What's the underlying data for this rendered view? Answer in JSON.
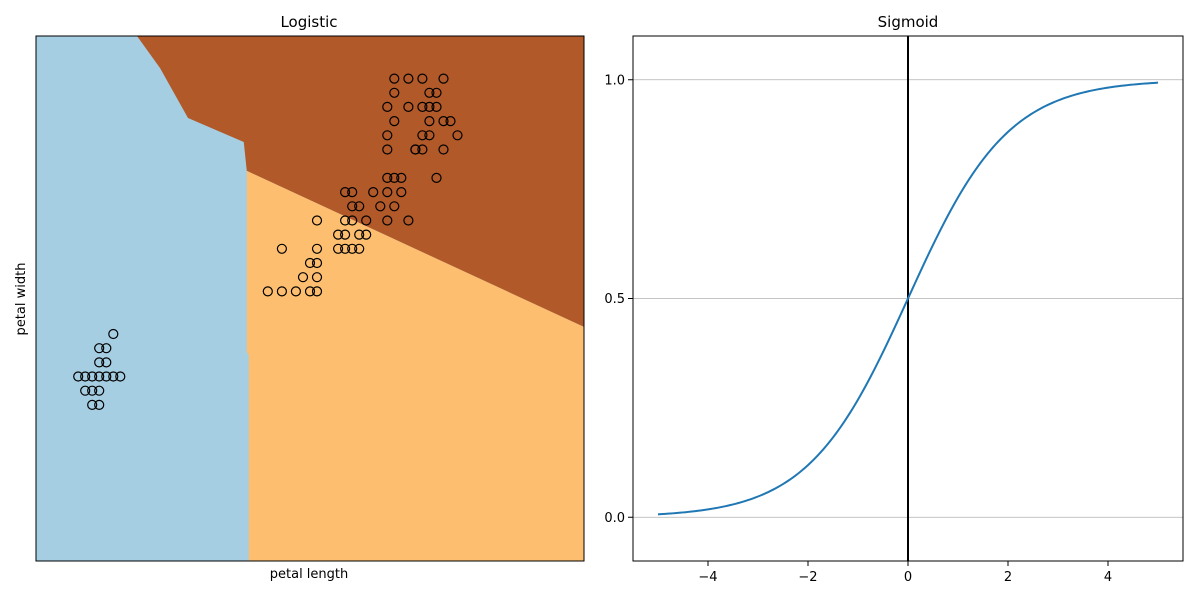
{
  "chart_data": [
    {
      "type": "scatter",
      "title": "Logistic",
      "xlabel": "petal length",
      "ylabel": "petal width",
      "xticks": "none",
      "yticks": "none",
      "grid": false,
      "region_colors": [
        "#a6cee3",
        "#fdbf6f",
        "#b15928"
      ],
      "boundary": {
        "blue_orange_edge_top": 3.0,
        "blue_orange_edge_mid": 3.0,
        "upper_line": [
          [
            3.0,
            1.85
          ],
          [
            7.8,
            0.75
          ]
        ]
      },
      "xlim": [
        0.0,
        7.8
      ],
      "ylim": [
        -0.9,
        2.8
      ],
      "points": [
        [
          0.6,
          0.4
        ],
        [
          0.7,
          0.4
        ],
        [
          0.8,
          0.4
        ],
        [
          0.9,
          0.4
        ],
        [
          1.0,
          0.4
        ],
        [
          1.1,
          0.4
        ],
        [
          1.2,
          0.4
        ],
        [
          0.7,
          0.3
        ],
        [
          0.8,
          0.3
        ],
        [
          0.9,
          0.3
        ],
        [
          0.8,
          0.2
        ],
        [
          0.9,
          0.2
        ],
        [
          0.9,
          0.5
        ],
        [
          1.0,
          0.5
        ],
        [
          0.9,
          0.6
        ],
        [
          1.0,
          0.6
        ],
        [
          1.1,
          0.7
        ],
        [
          3.3,
          1.0
        ],
        [
          3.5,
          1.0
        ],
        [
          3.7,
          1.0
        ],
        [
          3.9,
          1.0
        ],
        [
          4.0,
          1.0
        ],
        [
          3.8,
          1.1
        ],
        [
          4.0,
          1.1
        ],
        [
          3.9,
          1.2
        ],
        [
          4.0,
          1.2
        ],
        [
          3.5,
          1.3
        ],
        [
          4.0,
          1.3
        ],
        [
          4.3,
          1.3
        ],
        [
          4.4,
          1.3
        ],
        [
          4.5,
          1.3
        ],
        [
          4.6,
          1.3
        ],
        [
          4.3,
          1.4
        ],
        [
          4.4,
          1.4
        ],
        [
          4.6,
          1.4
        ],
        [
          4.7,
          1.4
        ],
        [
          4.0,
          1.5
        ],
        [
          4.4,
          1.5
        ],
        [
          4.5,
          1.5
        ],
        [
          4.7,
          1.5
        ],
        [
          5.0,
          1.5
        ],
        [
          5.3,
          1.5
        ],
        [
          4.5,
          1.6
        ],
        [
          4.6,
          1.6
        ],
        [
          4.9,
          1.6
        ],
        [
          5.1,
          1.6
        ],
        [
          4.4,
          1.7
        ],
        [
          4.5,
          1.7
        ],
        [
          4.8,
          1.7
        ],
        [
          5.0,
          1.7
        ],
        [
          5.2,
          1.7
        ],
        [
          5.0,
          1.8
        ],
        [
          5.1,
          1.8
        ],
        [
          5.2,
          1.8
        ],
        [
          5.7,
          1.8
        ],
        [
          5.4,
          2.0
        ],
        [
          5.5,
          2.0
        ],
        [
          5.0,
          2.0
        ],
        [
          5.8,
          2.0
        ],
        [
          5.4,
          2.0
        ],
        [
          5.0,
          2.1
        ],
        [
          5.6,
          2.1
        ],
        [
          5.5,
          2.1
        ],
        [
          6.0,
          2.1
        ],
        [
          5.1,
          2.2
        ],
        [
          5.6,
          2.2
        ],
        [
          5.9,
          2.2
        ],
        [
          5.8,
          2.2
        ],
        [
          5.0,
          2.3
        ],
        [
          5.6,
          2.3
        ],
        [
          5.3,
          2.3
        ],
        [
          5.7,
          2.3
        ],
        [
          5.5,
          2.3
        ],
        [
          5.1,
          2.4
        ],
        [
          5.6,
          2.4
        ],
        [
          5.7,
          2.4
        ],
        [
          5.1,
          2.5
        ],
        [
          5.3,
          2.5
        ],
        [
          5.5,
          2.5
        ],
        [
          5.8,
          2.5
        ]
      ]
    },
    {
      "type": "line",
      "title": "Sigmoid",
      "xlabel": "",
      "ylabel": "",
      "function": "1 / (1 + exp(-x))",
      "x_range": [
        -5,
        5
      ],
      "xlim": [
        -5.5,
        5.5
      ],
      "ylim": [
        -0.1,
        1.1
      ],
      "xticks": [
        -4,
        -2,
        0,
        2,
        4
      ],
      "xtick_labels": [
        "−4",
        "−2",
        "0",
        "2",
        "4"
      ],
      "yticks": [
        0.0,
        0.5,
        1.0
      ],
      "ytick_labels": [
        "0.0",
        "0.5",
        "1.0"
      ],
      "grid": "y-axis only",
      "vertical_line_at": 0,
      "line_color": "#1f77b4"
    }
  ]
}
